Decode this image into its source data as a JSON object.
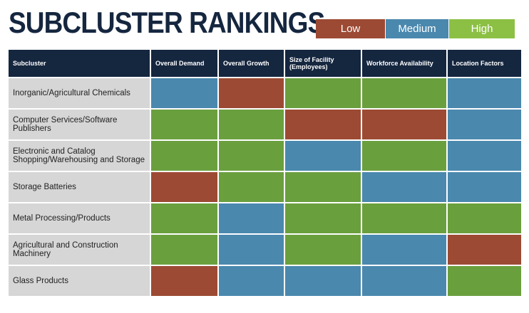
{
  "title": "SUBCLUSTER RANKINGS",
  "legend": {
    "low": "Low",
    "medium": "Medium",
    "high": "High"
  },
  "colors": {
    "low": "#9c4a34",
    "medium": "#4a88ae",
    "high": "#6a9f3e",
    "header": "#15263f"
  },
  "headers": [
    "Subcluster",
    "Overall Demand",
    "Overall Growth",
    "Size of Facility (Employees)",
    "Workforce Availability",
    "Location Factors"
  ],
  "rows": [
    {
      "name": "Inorganic/Agricultural Chemicals",
      "ratings": [
        "Medium",
        "Low",
        "High",
        "High",
        "Medium"
      ]
    },
    {
      "name": "Computer Services/Software Publishers",
      "ratings": [
        "High",
        "High",
        "Low",
        "Low",
        "Medium"
      ]
    },
    {
      "name": "Electronic and Catalog Shopping/Warehousing and Storage",
      "ratings": [
        "High",
        "High",
        "Medium",
        "High",
        "Medium"
      ]
    },
    {
      "name": "Storage Batteries",
      "ratings": [
        "Low",
        "High",
        "High",
        "Medium",
        "Medium"
      ]
    },
    {
      "name": "Metal Processing/Products",
      "ratings": [
        "High",
        "Medium",
        "High",
        "High",
        "High"
      ]
    },
    {
      "name": "Agricultural and Construction Machinery",
      "ratings": [
        "High",
        "Medium",
        "High",
        "Medium",
        "Low"
      ]
    },
    {
      "name": "Glass Products",
      "ratings": [
        "Low",
        "Medium",
        "Medium",
        "Medium",
        "High"
      ]
    }
  ]
}
